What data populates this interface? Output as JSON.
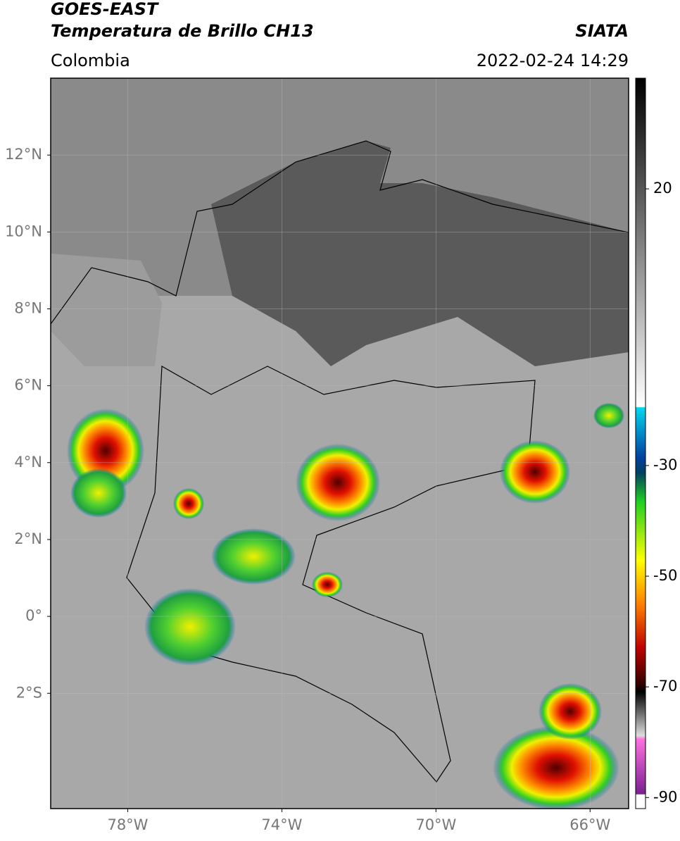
{
  "header": {
    "title": "GOES-EAST",
    "subtitle": "Temperatura de Brillo CH13",
    "region": "Colombia",
    "source": "SIATA",
    "datetime": "2022-02-24 14:29"
  },
  "map": {
    "xlim": [
      -80,
      -65
    ],
    "ylim": [
      -5,
      14
    ],
    "xticks": [
      {
        "value": -78,
        "label": "78°W"
      },
      {
        "value": -74,
        "label": "74°W"
      },
      {
        "value": -70,
        "label": "70°W"
      },
      {
        "value": -66,
        "label": "66°W"
      }
    ],
    "yticks": [
      {
        "value": 12,
        "label": "12°N"
      },
      {
        "value": 10,
        "label": "10°N"
      },
      {
        "value": 8,
        "label": "8°N"
      },
      {
        "value": 6,
        "label": "6°N"
      },
      {
        "value": 4,
        "label": "4°N"
      },
      {
        "value": 2,
        "label": "2°N"
      },
      {
        "value": 0,
        "label": "0°"
      },
      {
        "value": -2,
        "label": "2°S"
      }
    ],
    "grid": true
  },
  "colorbar": {
    "lim": [
      -92,
      40
    ],
    "ticks": [
      20,
      -30,
      -50,
      -70,
      -90
    ]
  }
}
